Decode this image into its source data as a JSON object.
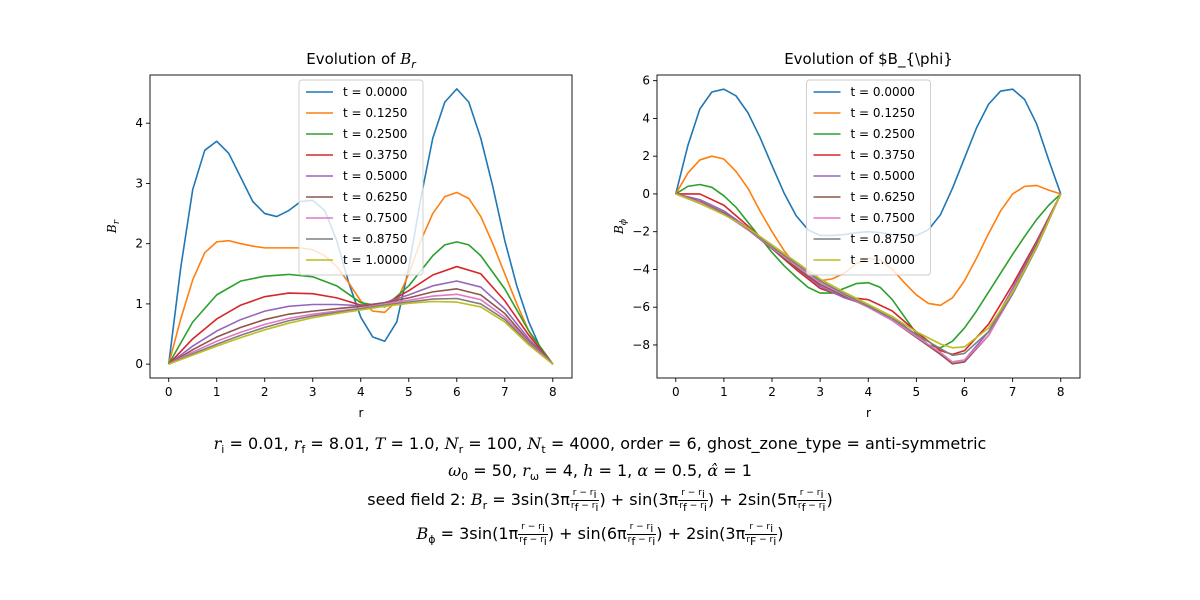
{
  "chart_data": [
    {
      "type": "line",
      "title_prefix": "Evolution of ",
      "title_symbol": "B",
      "title_sub": "r",
      "xlabel": "r",
      "ylabel_symbol": "B",
      "ylabel_sub": "r",
      "xlim": [
        -0.39,
        8.4
      ],
      "ylim": [
        -0.23,
        4.8
      ],
      "xticks": [
        "0",
        "1",
        "2",
        "3",
        "4",
        "5",
        "6",
        "7",
        "8"
      ],
      "yticks": [
        "0",
        "1",
        "2",
        "3",
        "4"
      ],
      "legend_position": "top-center",
      "series": [
        {
          "name": "t = 0.0000",
          "color": "#1f77b4",
          "x": [
            0,
            0.25,
            0.5,
            0.75,
            1,
            1.25,
            1.5,
            1.75,
            2,
            2.25,
            2.5,
            2.75,
            3,
            3.25,
            3.5,
            3.75,
            4,
            4.25,
            4.5,
            4.75,
            5,
            5.25,
            5.5,
            5.75,
            6,
            6.25,
            6.5,
            6.75,
            7,
            7.25,
            7.5,
            7.75,
            8
          ],
          "y": [
            0,
            1.6,
            2.9,
            3.55,
            3.7,
            3.5,
            3.1,
            2.7,
            2.5,
            2.45,
            2.55,
            2.7,
            2.72,
            2.55,
            2.05,
            1.35,
            0.78,
            0.45,
            0.38,
            0.7,
            1.6,
            2.75,
            3.75,
            4.35,
            4.57,
            4.35,
            3.75,
            2.95,
            2.05,
            1.3,
            0.7,
            0.25,
            0
          ]
        },
        {
          "name": "t = 0.1250",
          "color": "#ff7f0e",
          "x": [
            0,
            0.25,
            0.5,
            0.75,
            1,
            1.25,
            1.5,
            1.75,
            2,
            2.25,
            2.5,
            2.75,
            3,
            3.25,
            3.5,
            3.75,
            4,
            4.25,
            4.5,
            4.75,
            5,
            5.25,
            5.5,
            5.75,
            6,
            6.25,
            6.5,
            6.75,
            7,
            7.25,
            7.5,
            7.75,
            8
          ],
          "y": [
            0,
            0.75,
            1.4,
            1.85,
            2.03,
            2.05,
            2.0,
            1.96,
            1.93,
            1.93,
            1.93,
            1.93,
            1.9,
            1.8,
            1.62,
            1.35,
            1.05,
            0.88,
            0.86,
            1.05,
            1.5,
            2.05,
            2.5,
            2.78,
            2.85,
            2.75,
            2.45,
            2.0,
            1.5,
            1.0,
            0.55,
            0.2,
            0
          ]
        },
        {
          "name": "t = 0.2500",
          "color": "#2ca02c",
          "x": [
            0,
            0.5,
            1,
            1.5,
            2,
            2.5,
            3,
            3.5,
            4,
            4.5,
            5,
            5.5,
            5.75,
            6,
            6.25,
            6.5,
            7,
            7.5,
            8
          ],
          "y": [
            0,
            0.7,
            1.15,
            1.38,
            1.46,
            1.49,
            1.45,
            1.3,
            1.02,
            0.95,
            1.3,
            1.8,
            1.98,
            2.03,
            1.98,
            1.8,
            1.25,
            0.55,
            0
          ]
        },
        {
          "name": "t = 0.3750",
          "color": "#d62728",
          "x": [
            0,
            0.5,
            1,
            1.5,
            2,
            2.5,
            3,
            3.5,
            4,
            4.5,
            5,
            5.5,
            6,
            6.5,
            7,
            7.5,
            8
          ],
          "y": [
            0,
            0.42,
            0.75,
            0.98,
            1.12,
            1.18,
            1.17,
            1.1,
            0.98,
            1.0,
            1.22,
            1.48,
            1.62,
            1.5,
            1.05,
            0.48,
            0
          ]
        },
        {
          "name": "t = 0.5000",
          "color": "#9467bd",
          "x": [
            0,
            0.5,
            1,
            1.5,
            2,
            2.5,
            3,
            3.5,
            4,
            4.5,
            5,
            5.5,
            6,
            6.5,
            7,
            7.5,
            8
          ],
          "y": [
            0,
            0.3,
            0.55,
            0.74,
            0.88,
            0.96,
            0.99,
            0.99,
            0.97,
            1.02,
            1.15,
            1.3,
            1.38,
            1.28,
            0.92,
            0.42,
            0
          ]
        },
        {
          "name": "t = 0.6250",
          "color": "#8c564b",
          "x": [
            0,
            0.5,
            1,
            1.5,
            2,
            2.5,
            3,
            3.5,
            4,
            4.5,
            5,
            5.5,
            6,
            6.5,
            7,
            7.5,
            8
          ],
          "y": [
            0,
            0.24,
            0.45,
            0.61,
            0.74,
            0.83,
            0.88,
            0.92,
            0.96,
            1.02,
            1.1,
            1.2,
            1.25,
            1.15,
            0.84,
            0.38,
            0
          ]
        },
        {
          "name": "t = 0.7500",
          "color": "#e377c2",
          "x": [
            0,
            0.5,
            1,
            1.5,
            2,
            2.5,
            3,
            3.5,
            4,
            4.5,
            5,
            5.5,
            6,
            6.5,
            7,
            7.5,
            8
          ],
          "y": [
            0,
            0.2,
            0.38,
            0.53,
            0.66,
            0.76,
            0.83,
            0.88,
            0.93,
            1.0,
            1.06,
            1.13,
            1.16,
            1.07,
            0.78,
            0.36,
            0
          ]
        },
        {
          "name": "t = 0.8750",
          "color": "#7f7f7f",
          "x": [
            0,
            0.5,
            1,
            1.5,
            2,
            2.5,
            3,
            3.5,
            4,
            4.5,
            5,
            5.5,
            6,
            6.5,
            7,
            7.5,
            8
          ],
          "y": [
            0,
            0.17,
            0.33,
            0.48,
            0.61,
            0.72,
            0.8,
            0.86,
            0.92,
            0.98,
            1.03,
            1.08,
            1.09,
            1.0,
            0.74,
            0.34,
            0
          ]
        },
        {
          "name": "t = 1.0000",
          "color": "#bcbd22",
          "x": [
            0,
            0.5,
            1,
            1.5,
            2,
            2.5,
            3,
            3.5,
            4,
            4.5,
            5,
            5.5,
            6,
            6.5,
            7,
            7.5,
            8
          ],
          "y": [
            0,
            0.15,
            0.3,
            0.44,
            0.57,
            0.68,
            0.77,
            0.84,
            0.9,
            0.96,
            1.01,
            1.04,
            1.03,
            0.95,
            0.7,
            0.32,
            0
          ]
        }
      ]
    },
    {
      "type": "line",
      "title_text": "Evolution of $B_{\\phi}",
      "xlabel": "r",
      "ylabel_symbol": "B",
      "ylabel_sub": "ϕ",
      "xlim": [
        -0.39,
        8.4
      ],
      "ylim": [
        -9.75,
        6.3
      ],
      "xticks": [
        "0",
        "1",
        "2",
        "3",
        "4",
        "5",
        "6",
        "7",
        "8"
      ],
      "yticks": [
        "−8",
        "−6",
        "−4",
        "−2",
        "0",
        "2",
        "4",
        "6"
      ],
      "ytick_values": [
        -8,
        -6,
        -4,
        -2,
        0,
        2,
        4,
        6
      ],
      "legend_position": "top-center",
      "series": [
        {
          "name": "t = 0.0000",
          "color": "#1f77b4",
          "x": [
            0,
            0.25,
            0.5,
            0.75,
            1,
            1.25,
            1.5,
            1.75,
            2,
            2.25,
            2.5,
            2.75,
            3,
            3.25,
            3.5,
            3.75,
            4,
            4.25,
            4.5,
            4.75,
            5,
            5.25,
            5.5,
            5.75,
            6,
            6.25,
            6.5,
            6.75,
            7,
            7.25,
            7.5,
            7.75,
            8
          ],
          "y": [
            0,
            2.55,
            4.5,
            5.4,
            5.55,
            5.2,
            4.3,
            3.0,
            1.5,
            0.05,
            -1.15,
            -1.9,
            -2.2,
            -2.2,
            -2.15,
            -2.05,
            -2.0,
            -2.05,
            -2.15,
            -2.2,
            -2.2,
            -1.9,
            -1.1,
            0.3,
            1.9,
            3.5,
            4.75,
            5.45,
            5.55,
            5.0,
            3.7,
            1.8,
            0
          ]
        },
        {
          "name": "t = 0.1250",
          "color": "#ff7f0e",
          "x": [
            0,
            0.25,
            0.5,
            0.75,
            1,
            1.25,
            1.5,
            1.75,
            2,
            2.25,
            2.5,
            2.75,
            3,
            3.25,
            3.5,
            3.75,
            4,
            4.25,
            4.5,
            4.75,
            5,
            5.25,
            5.5,
            5.75,
            6,
            6.25,
            6.5,
            6.75,
            7,
            7.25,
            7.5,
            7.75,
            8
          ],
          "y": [
            0,
            1.1,
            1.8,
            2.0,
            1.85,
            1.2,
            0.3,
            -0.9,
            -2.0,
            -3.0,
            -3.8,
            -4.35,
            -4.6,
            -4.5,
            -4.2,
            -3.7,
            -3.4,
            -3.5,
            -4.0,
            -4.7,
            -5.35,
            -5.8,
            -5.9,
            -5.5,
            -4.6,
            -3.4,
            -2.1,
            -0.9,
            0.0,
            0.4,
            0.45,
            0.2,
            0
          ]
        },
        {
          "name": "t = 0.2500",
          "color": "#2ca02c",
          "x": [
            0,
            0.25,
            0.5,
            0.75,
            1,
            1.25,
            1.5,
            1.75,
            2,
            2.25,
            2.5,
            2.75,
            3,
            3.25,
            3.5,
            3.75,
            4,
            4.25,
            4.5,
            4.75,
            5,
            5.25,
            5.5,
            5.75,
            6,
            6.25,
            6.5,
            6.75,
            7,
            7.25,
            7.5,
            7.75,
            8
          ],
          "y": [
            0,
            0.4,
            0.5,
            0.35,
            -0.1,
            -0.7,
            -1.5,
            -2.3,
            -3.1,
            -3.8,
            -4.4,
            -4.95,
            -5.25,
            -5.25,
            -5.0,
            -4.75,
            -4.7,
            -4.95,
            -5.6,
            -6.5,
            -7.4,
            -8.0,
            -8.15,
            -7.8,
            -7.1,
            -6.2,
            -5.2,
            -4.2,
            -3.2,
            -2.25,
            -1.35,
            -0.6,
            0
          ]
        },
        {
          "name": "t = 0.3750",
          "color": "#d62728",
          "x": [
            0,
            0.5,
            1,
            1.5,
            2,
            2.5,
            3,
            3.5,
            4,
            4.5,
            5,
            5.5,
            5.75,
            6,
            6.5,
            7,
            7.5,
            8
          ],
          "y": [
            0,
            0.0,
            -0.6,
            -1.7,
            -2.9,
            -4.0,
            -5.0,
            -5.45,
            -5.6,
            -6.2,
            -7.3,
            -8.3,
            -8.5,
            -8.3,
            -6.9,
            -4.8,
            -2.5,
            0
          ]
        },
        {
          "name": "t = 0.5000",
          "color": "#9467bd",
          "x": [
            0,
            0.5,
            1,
            1.5,
            2,
            2.5,
            3,
            3.5,
            4,
            4.5,
            5,
            5.5,
            5.75,
            6,
            6.5,
            7,
            7.5,
            8
          ],
          "y": [
            0,
            -0.3,
            -0.9,
            -1.8,
            -2.9,
            -3.9,
            -4.9,
            -5.5,
            -5.9,
            -6.5,
            -7.5,
            -8.5,
            -8.9,
            -8.8,
            -7.3,
            -5.0,
            -2.6,
            0
          ]
        },
        {
          "name": "t = 0.6250",
          "color": "#8c564b",
          "x": [
            0,
            0.5,
            1,
            1.5,
            2,
            2.5,
            3,
            3.5,
            4,
            4.5,
            5,
            5.5,
            5.75,
            6,
            6.5,
            7,
            7.5,
            8
          ],
          "y": [
            0,
            -0.4,
            -1.0,
            -1.9,
            -2.9,
            -3.9,
            -4.8,
            -5.4,
            -6.0,
            -6.7,
            -7.6,
            -8.5,
            -9.0,
            -8.9,
            -7.5,
            -5.2,
            -2.7,
            0
          ]
        },
        {
          "name": "t = 0.7500",
          "color": "#e377c2",
          "x": [
            0,
            0.5,
            1,
            1.5,
            2,
            2.5,
            3,
            3.5,
            4,
            4.5,
            5,
            5.5,
            5.75,
            6,
            6.5,
            7,
            7.5,
            8
          ],
          "y": [
            0,
            -0.45,
            -1.05,
            -1.9,
            -2.85,
            -3.8,
            -4.7,
            -5.35,
            -6.0,
            -6.7,
            -7.55,
            -8.4,
            -8.9,
            -8.8,
            -7.5,
            -5.3,
            -2.8,
            0
          ]
        },
        {
          "name": "t = 0.8750",
          "color": "#7f7f7f",
          "x": [
            0,
            0.5,
            1,
            1.5,
            2,
            2.5,
            3,
            3.5,
            4,
            4.5,
            5,
            5.5,
            5.75,
            6,
            6.5,
            7,
            7.5,
            8
          ],
          "y": [
            0,
            -0.5,
            -1.05,
            -1.85,
            -2.8,
            -3.7,
            -4.6,
            -5.3,
            -5.95,
            -6.6,
            -7.45,
            -8.2,
            -8.55,
            -8.45,
            -7.3,
            -5.3,
            -2.85,
            0
          ]
        },
        {
          "name": "t = 1.0000",
          "color": "#bcbd22",
          "x": [
            0,
            0.5,
            1,
            1.5,
            2,
            2.5,
            3,
            3.5,
            4,
            4.5,
            5,
            5.5,
            5.75,
            6,
            6.5,
            7,
            7.5,
            8
          ],
          "y": [
            0,
            -0.5,
            -1.1,
            -1.8,
            -2.7,
            -3.6,
            -4.5,
            -5.2,
            -5.85,
            -6.5,
            -7.3,
            -7.95,
            -8.15,
            -8.1,
            -7.1,
            -5.2,
            -2.8,
            0
          ]
        }
      ]
    }
  ],
  "caption": {
    "line1": {
      "ri": "= 0.01,",
      "rf": "= 8.01,",
      "T": "= 1.0,",
      "Nr": "= 100,",
      "Nt": "= 4000,",
      "rest": "order = 6, ghost_zone_type = anti-symmetric"
    },
    "line2": {
      "omega0": "= 50,",
      "romega": "= 4,",
      "h": "= 1,",
      "alpha": "= 0.5,",
      "alphahat": "= 1"
    },
    "line3": {
      "prefix": "seed field 2:",
      "lhs": "= 3sin(3π",
      "mid1": ") + sin(3π",
      "mid2": ") + 2sin(5π",
      "end": ")"
    },
    "line4": {
      "lhs": "= 3sin(1π",
      "mid1": ") + sin(6π",
      "mid2": ") + 2sin(3π",
      "end": ")"
    },
    "frac": {
      "num": "r − r",
      "den_f": "r",
      "den_F": "r"
    }
  }
}
